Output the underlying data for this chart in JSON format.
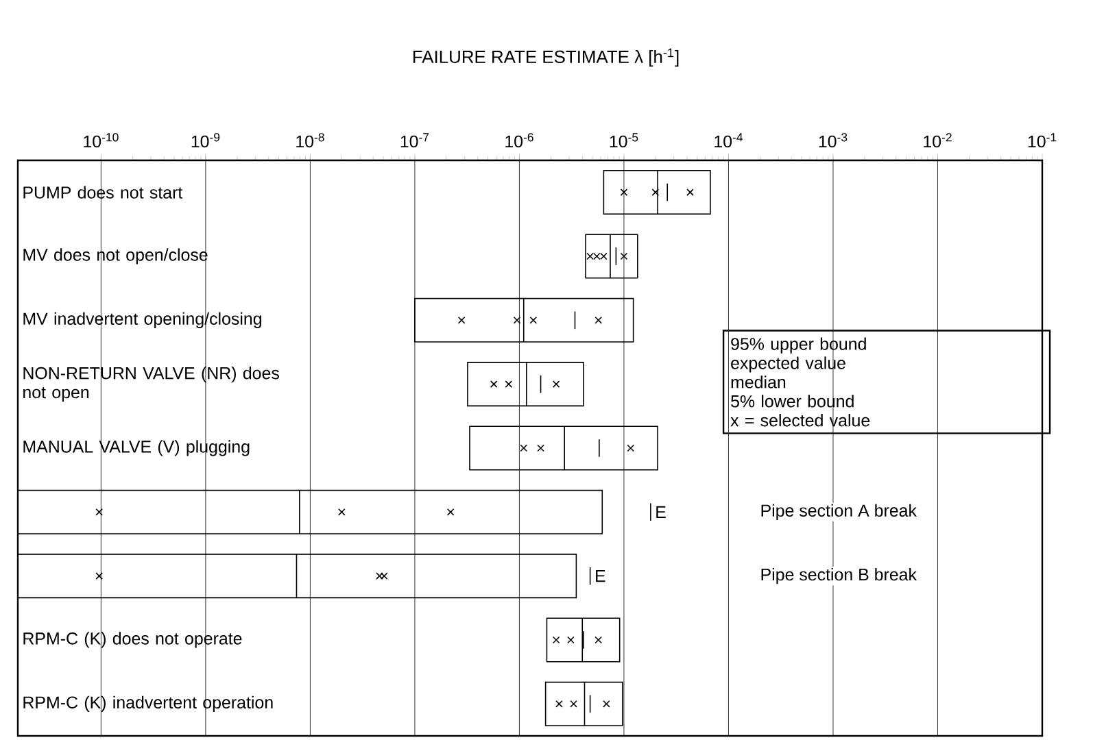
{
  "chart_data": {
    "type": "box",
    "orientation": "horizontal",
    "log": "x",
    "grid": "x",
    "color": "#000000",
    "title": "FAILURE RATE ESTIMATE λ [h$^{-1}$]",
    "categories": [
      "PUMP does not start",
      "MV does not open/close",
      "MV inadvertent opening/closing",
      "NON-RETURN VALVE (NR) does not open",
      "MANUAL VALVE (V) plugging",
      "Pipe section A break",
      "Pipe section B break",
      "RPM-C (K) does not operate",
      "RPM-C (K) inadvertent operation"
    ],
    "boxes": [
      {
        "low": 6.4e-06,
        "q1": 6.4e-06,
        "median": 2.1e-05,
        "q3": 6.7e-05,
        "high": 6.7e-05,
        "mean": 2.6e-05
      },
      {
        "low": 4.3e-06,
        "q1": 4.3e-06,
        "median": 7.4e-06,
        "q3": 1.35e-05,
        "high": 1.35e-05,
        "mean": 8.4e-06
      },
      {
        "low": 1e-07,
        "q1": 1e-07,
        "median": 1.1e-06,
        "q3": 1.23e-05,
        "high": 1.23e-05,
        "mean": 3.4e-06
      },
      {
        "low": 3.2e-07,
        "q1": 3.2e-07,
        "median": 1.17e-06,
        "q3": 4.1e-06,
        "high": 4.1e-06,
        "mean": 1.6e-06
      },
      {
        "low": 3.35e-07,
        "q1": 3.35e-07,
        "median": 2.7e-06,
        "q3": 2.1e-05,
        "high": 2.1e-05,
        "mean": 5.8e-06
      },
      {
        "low": 1.6e-11,
        "q1": 1.6e-11,
        "median": 7.9e-09,
        "q3": 6.2e-06,
        "high": 6.2e-06,
        "mean": 1.8e-05
      },
      {
        "low": 1.6e-11,
        "q1": 1.6e-11,
        "median": 7.4e-09,
        "q3": 3.5e-06,
        "high": 3.5e-06,
        "mean": 4.75e-06
      },
      {
        "low": 1.83e-06,
        "q1": 1.83e-06,
        "median": 4e-06,
        "q3": 9.1e-06,
        "high": 9.1e-06,
        "mean": 4.1e-06
      },
      {
        "low": 1.78e-06,
        "q1": 1.78e-06,
        "median": 4.2e-06,
        "q3": 9.7e-06,
        "high": 9.7e-06,
        "mean": 4.75e-06
      }
    ],
    "series": [
      {
        "type": "scatter",
        "marker": "cross",
        "color": "#000000",
        "x": [
          "PUMP does not start",
          "PUMP does not start",
          "PUMP does not start",
          "MV does not open/close",
          "MV does not open/close",
          "MV does not open/close",
          "MV does not open/close",
          "MV inadvertent opening/closing",
          "MV inadvertent opening/closing",
          "MV inadvertent opening/closing",
          "MV inadvertent opening/closing",
          "NON-RETURN VALVE (NR) does not open",
          "NON-RETURN VALVE (NR) does not open",
          "NON-RETURN VALVE (NR) does not open",
          "MANUAL VALVE (V) plugging",
          "MANUAL VALVE (V) plugging",
          "MANUAL VALVE (V) plugging",
          "Pipe section A break",
          "Pipe section A break",
          "Pipe section A break",
          "Pipe section B break",
          "Pipe section B break",
          "Pipe section B break",
          "RPM-C (K) does not operate",
          "RPM-C (K) does not operate",
          "RPM-C (K) does not operate",
          "RPM-C (K) inadvertent operation",
          "RPM-C (K) inadvertent operation",
          "RPM-C (K) inadvertent operation"
        ],
        "values": [
          1e-05,
          2e-05,
          4.3e-05,
          4.75e-06,
          5.5e-06,
          6.4e-06,
          1e-05,
          2.8e-07,
          9.5e-07,
          1.36e-06,
          5.7e-06,
          5.7e-07,
          7.9e-07,
          2.25e-06,
          1.1e-06,
          1.6e-06,
          1.16e-05,
          9.6e-11,
          2e-08,
          2.2e-07,
          9.6e-11,
          4.6e-08,
          5.1e-08,
          2.25e-06,
          3.1e-06,
          5.7e-06,
          2.4e-06,
          3.3e-06,
          6.8e-06
        ]
      }
    ],
    "xlim": [
      1.6e-11,
      0.1
    ],
    "xticks": [
      {
        "value": 1e-10,
        "label": "10$^{-10}$"
      },
      {
        "value": 1e-09,
        "label": "10$^{-9}$"
      },
      {
        "value": 1e-08,
        "label": "10$^{-8}$"
      },
      {
        "value": 1e-07,
        "label": "10$^{-7}$"
      },
      {
        "value": 1e-06,
        "label": "10$^{-6}$"
      },
      {
        "value": 1e-05,
        "label": "10$^{-5}$"
      },
      {
        "value": 0.0001,
        "label": "10$^{-4}$"
      },
      {
        "value": 0.001,
        "label": "10$^{-3}$"
      },
      {
        "value": 0.01,
        "label": "10$^{-2}$"
      },
      {
        "value": 0.1,
        "label": "10$^{-1}$"
      }
    ],
    "annotations": [
      "95% upper bound",
      "expected value",
      "median",
      "5% lower bound",
      "x = selected value",
      "E",
      "E"
    ]
  }
}
